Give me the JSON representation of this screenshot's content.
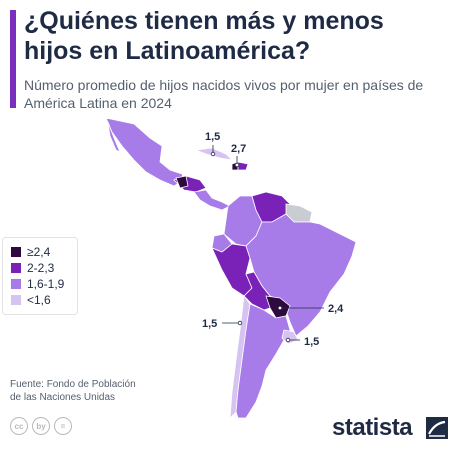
{
  "header": {
    "title": "¿Quiénes tienen más y menos hijos en Latinoamérica?",
    "subtitle": "Número promedio de hijos nacidos vivos por mujer en países de América Latina en 2024"
  },
  "legend": [
    {
      "label": "≥2,4",
      "color": "#2e0a3f"
    },
    {
      "label": "2-2,3",
      "color": "#7a22b8"
    },
    {
      "label": "1,6-1,9",
      "color": "#a87ce8"
    },
    {
      "label": "<1,6",
      "color": "#d6c3f2"
    }
  ],
  "colors": {
    "no_data": "#c9cdd3",
    "accent": "#7b2fbe",
    "outline": "#ffffff"
  },
  "map_callouts": [
    {
      "value": "1,5",
      "country": "Cuba"
    },
    {
      "value": "2,7",
      "country": "Haití"
    },
    {
      "value": "2,4",
      "country": "Paraguay"
    },
    {
      "value": "1,5",
      "country": "Chile"
    },
    {
      "value": "1,5",
      "country": "Uruguay"
    }
  ],
  "footer": {
    "source_line1": "Fuente: Fondo de Población",
    "source_line2": "de las Naciones Unidas",
    "brand": "statista",
    "license_icons": [
      "cc",
      "by",
      "="
    ]
  }
}
